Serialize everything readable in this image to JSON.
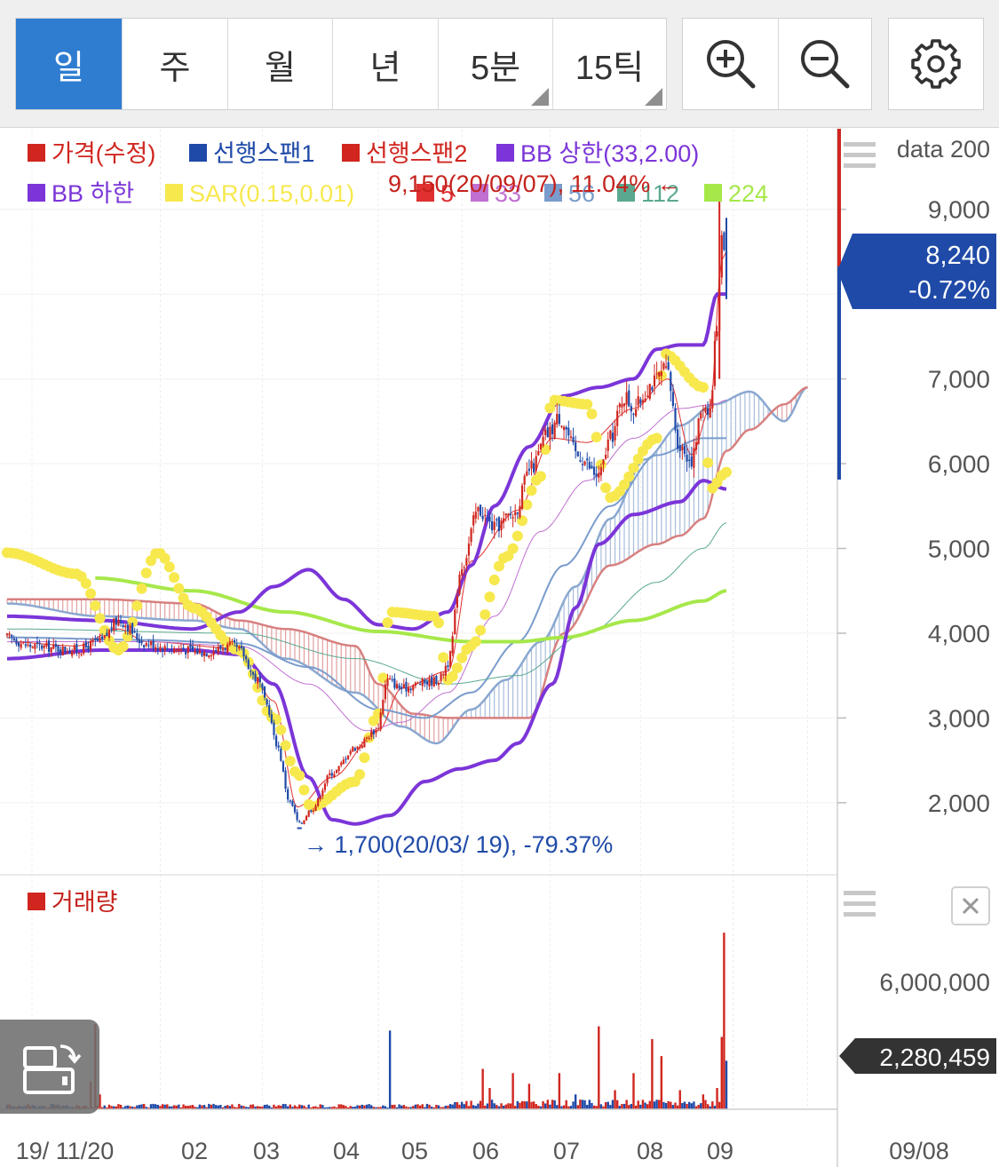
{
  "toolbar": {
    "periods": [
      {
        "label": "일",
        "active": true,
        "menu": false
      },
      {
        "label": "주",
        "active": false,
        "menu": false
      },
      {
        "label": "월",
        "active": false,
        "menu": false
      },
      {
        "label": "년",
        "active": false,
        "menu": false
      },
      {
        "label": "5분",
        "active": false,
        "menu": true
      },
      {
        "label": "15틱",
        "active": false,
        "menu": true
      }
    ],
    "icons": [
      "zoom-in-icon",
      "zoom-out-icon",
      "gear-icon"
    ]
  },
  "colors": {
    "price_up": "#d0261f",
    "price_down": "#1f4aa8",
    "span1": "#1f4aa8",
    "span2": "#d0261f",
    "bollinger": "#7b35d8",
    "sar": "#f7e84e",
    "ma5": "#e03030",
    "ma33": "#c070d0",
    "ma56": "#7a9ccc",
    "ma112": "#5aa890",
    "ma224": "#a6e84a",
    "cloud_pos": "#d88080",
    "cloud_neg": "#8aa8d0"
  },
  "legend": {
    "row1": [
      {
        "name": "가격(수정)",
        "color": "#d0261f"
      },
      {
        "name": "선행스팬1",
        "color": "#1f4aa8"
      },
      {
        "name": "선행스팬2",
        "color": "#d0261f"
      },
      {
        "name": "BB 상한(33,2.00)",
        "color": "#7b35d8"
      }
    ],
    "row2": [
      {
        "name": "BB 하한",
        "color": "#7b35d8"
      },
      {
        "name": "SAR(0.15,0.01)",
        "color": "#f7e84e"
      },
      {
        "name": "5",
        "color": "#e03030"
      },
      {
        "name": "33",
        "color": "#c070d0"
      },
      {
        "name": "56",
        "color": "#7a9ccc"
      },
      {
        "name": "112",
        "color": "#5aa890"
      },
      {
        "name": "224",
        "color": "#a6e84a"
      }
    ]
  },
  "price_panel": {
    "axis_title": "data 200",
    "current_price": "8,240",
    "change_pct": "-0.72%",
    "high_annotation": "9,150(20/09/07), 11.04% ←",
    "low_annotation": "→ 1,700(20/03/ 19), -79.37%"
  },
  "volume_panel": {
    "legend": "거래량",
    "current_volume": "2,280,459"
  },
  "x_axis": {
    "labels": [
      "19/ 11/20",
      "02",
      "03",
      "04",
      "05",
      "06",
      "07",
      "08",
      "09"
    ],
    "right_date": "09/08"
  },
  "chart_data": [
    {
      "type": "candlestick",
      "title": "",
      "x_ticks": [
        "19/ 11/20",
        "02",
        "03",
        "04",
        "05",
        "06",
        "07",
        "08",
        "09"
      ],
      "ylim": [
        1150,
        9950
      ],
      "y_ticks": [
        2000,
        3000,
        4000,
        5000,
        6000,
        7000,
        8000,
        9000
      ],
      "y_tick_labels": [
        "2,000",
        "3,000",
        "4,000",
        "5,000",
        "6,000",
        "7,000",
        "8,000",
        "9,000"
      ],
      "current_price": 8240,
      "high": {
        "value": 9150,
        "date": "20/09/07",
        "pct": 11.04
      },
      "low": {
        "value": 1700,
        "date": "20/03/19",
        "pct": -79.37
      },
      "close_keypoints": [
        [
          0,
          3950
        ],
        [
          10,
          3850
        ],
        [
          30,
          3800
        ],
        [
          40,
          3900
        ],
        [
          48,
          4150
        ],
        [
          60,
          3880
        ],
        [
          70,
          3820
        ],
        [
          85,
          3780
        ],
        [
          97,
          3850
        ],
        [
          100,
          3800
        ],
        [
          108,
          3450
        ],
        [
          112,
          3150
        ],
        [
          116,
          2700
        ],
        [
          122,
          2000
        ],
        [
          126,
          1750
        ],
        [
          131,
          1920
        ],
        [
          140,
          2350
        ],
        [
          150,
          2650
        ],
        [
          159,
          2850
        ],
        [
          164,
          3450
        ],
        [
          170,
          3350
        ],
        [
          180,
          3420
        ],
        [
          186,
          3450
        ],
        [
          190,
          3650
        ],
        [
          196,
          4800
        ],
        [
          203,
          5450
        ],
        [
          210,
          5250
        ],
        [
          218,
          5400
        ],
        [
          226,
          5950
        ],
        [
          233,
          6350
        ],
        [
          238,
          6550
        ],
        [
          246,
          6100
        ],
        [
          255,
          5850
        ],
        [
          260,
          6300
        ],
        [
          266,
          6800
        ],
        [
          270,
          6650
        ],
        [
          278,
          6950
        ],
        [
          284,
          7100
        ],
        [
          290,
          6200
        ],
        [
          295,
          6050
        ],
        [
          300,
          6700
        ],
        [
          303,
          6650
        ],
        [
          306,
          7650
        ],
        [
          308,
          8800
        ],
        [
          310,
          8240
        ]
      ],
      "series": [
        {
          "name": "선행스팬1",
          "keypoints": [
            [
              0,
              4350
            ],
            [
              40,
              4200
            ],
            [
              80,
              4150
            ],
            [
              100,
              4050
            ],
            [
              120,
              3700
            ],
            [
              150,
              3300
            ],
            [
              170,
              2900
            ],
            [
              185,
              2700
            ],
            [
              200,
              3100
            ],
            [
              215,
              3450
            ],
            [
              230,
              3900
            ],
            [
              245,
              4550
            ],
            [
              260,
              5350
            ],
            [
              275,
              6050
            ],
            [
              290,
              6450
            ],
            [
              305,
              6700
            ],
            [
              320,
              6850
            ],
            [
              335,
              6500
            ],
            [
              345,
              6900
            ]
          ]
        },
        {
          "name": "선행스팬2",
          "keypoints": [
            [
              0,
              4400
            ],
            [
              40,
              4400
            ],
            [
              80,
              4350
            ],
            [
              100,
              4150
            ],
            [
              120,
              4050
            ],
            [
              150,
              3850
            ],
            [
              160,
              3400
            ],
            [
              175,
              3050
            ],
            [
              190,
              3000
            ],
            [
              210,
              3000
            ],
            [
              225,
              3000
            ],
            [
              240,
              4000
            ],
            [
              260,
              4800
            ],
            [
              280,
              5050
            ],
            [
              290,
              5150
            ],
            [
              300,
              5350
            ],
            [
              310,
              6150
            ],
            [
              320,
              6400
            ],
            [
              335,
              6700
            ],
            [
              345,
              6900
            ]
          ]
        },
        {
          "name": "BB 상한(33,2.00)",
          "keypoints": [
            [
              0,
              4200
            ],
            [
              40,
              4150
            ],
            [
              80,
              4050
            ],
            [
              100,
              4250
            ],
            [
              115,
              4550
            ],
            [
              130,
              4750
            ],
            [
              145,
              4400
            ],
            [
              160,
              4100
            ],
            [
              175,
              4050
            ],
            [
              190,
              4250
            ],
            [
              200,
              4800
            ],
            [
              210,
              5500
            ],
            [
              225,
              6200
            ],
            [
              240,
              6800
            ],
            [
              255,
              6900
            ],
            [
              270,
              7000
            ],
            [
              280,
              7350
            ],
            [
              290,
              7400
            ],
            [
              300,
              7400
            ],
            [
              306,
              8000
            ],
            [
              310,
              8000
            ]
          ]
        },
        {
          "name": "BB 하한",
          "keypoints": [
            [
              0,
              3700
            ],
            [
              40,
              3800
            ],
            [
              80,
              3800
            ],
            [
              100,
              3750
            ],
            [
              115,
              3400
            ],
            [
              130,
              2300
            ],
            [
              140,
              1800
            ],
            [
              150,
              1750
            ],
            [
              165,
              1850
            ],
            [
              180,
              2250
            ],
            [
              195,
              2400
            ],
            [
              210,
              2500
            ],
            [
              220,
              2700
            ],
            [
              235,
              3400
            ],
            [
              245,
              4300
            ],
            [
              255,
              5050
            ],
            [
              270,
              5400
            ],
            [
              290,
              5550
            ],
            [
              300,
              5800
            ],
            [
              310,
              5700
            ]
          ]
        },
        {
          "name": "SAR(0.15,0.01)",
          "keypoints": [
            [
              0,
              4950
            ],
            [
              30,
              4700
            ],
            [
              48,
              3800
            ],
            [
              65,
              4950
            ],
            [
              80,
              4300
            ],
            [
              100,
              3800
            ],
            [
              115,
              3000
            ],
            [
              125,
              2350
            ],
            [
              131,
              1950
            ],
            [
              150,
              2250
            ],
            [
              160,
              3050
            ],
            [
              165,
              4250
            ],
            [
              185,
              4200
            ],
            [
              190,
              3450
            ],
            [
              200,
              3850
            ],
            [
              215,
              4900
            ],
            [
              230,
              5850
            ],
            [
              235,
              6750
            ],
            [
              250,
              6700
            ],
            [
              260,
              5600
            ],
            [
              280,
              6300
            ],
            [
              283,
              7300
            ],
            [
              300,
              6900
            ],
            [
              303,
              5700
            ],
            [
              310,
              5900
            ]
          ]
        },
        {
          "name": "5",
          "keypoints": [
            [
              0,
              3900
            ],
            [
              30,
              3850
            ],
            [
              48,
              4050
            ],
            [
              60,
              3900
            ],
            [
              100,
              3820
            ],
            [
              115,
              3200
            ],
            [
              125,
              1950
            ],
            [
              140,
              2300
            ],
            [
              160,
              2850
            ],
            [
              170,
              3350
            ],
            [
              190,
              3550
            ],
            [
              200,
              4850
            ],
            [
              220,
              5450
            ],
            [
              235,
              6300
            ],
            [
              250,
              6250
            ],
            [
              270,
              6650
            ],
            [
              285,
              7000
            ],
            [
              295,
              6100
            ],
            [
              303,
              6650
            ],
            [
              308,
              8400
            ],
            [
              310,
              8500
            ]
          ]
        },
        {
          "name": "33",
          "keypoints": [
            [
              0,
              3900
            ],
            [
              60,
              3900
            ],
            [
              100,
              3850
            ],
            [
              130,
              3400
            ],
            [
              155,
              2850
            ],
            [
              170,
              2950
            ],
            [
              190,
              3300
            ],
            [
              210,
              4200
            ],
            [
              230,
              5200
            ],
            [
              250,
              5800
            ],
            [
              270,
              6300
            ],
            [
              290,
              6650
            ],
            [
              305,
              6700
            ],
            [
              310,
              6750
            ]
          ]
        },
        {
          "name": "56",
          "keypoints": [
            [
              0,
              3950
            ],
            [
              60,
              3920
            ],
            [
              100,
              3880
            ],
            [
              130,
              3600
            ],
            [
              160,
              3100
            ],
            [
              180,
              3000
            ],
            [
              200,
              3300
            ],
            [
              220,
              3900
            ],
            [
              240,
              4800
            ],
            [
              260,
              5500
            ],
            [
              280,
              6100
            ],
            [
              300,
              6300
            ],
            [
              310,
              6300
            ]
          ]
        },
        {
          "name": "112",
          "keypoints": [
            [
              0,
              4050
            ],
            [
              100,
              4000
            ],
            [
              150,
              3700
            ],
            [
              190,
              3400
            ],
            [
              220,
              3500
            ],
            [
              250,
              4000
            ],
            [
              280,
              4600
            ],
            [
              300,
              5000
            ],
            [
              310,
              5300
            ]
          ]
        },
        {
          "name": "224",
          "keypoints": [
            [
              38,
              4650
            ],
            [
              80,
              4500
            ],
            [
              120,
              4250
            ],
            [
              160,
              4020
            ],
            [
              200,
              3900
            ],
            [
              220,
              3900
            ],
            [
              240,
              3950
            ],
            [
              270,
              4150
            ],
            [
              300,
              4380
            ],
            [
              310,
              4500
            ]
          ]
        }
      ]
    },
    {
      "type": "bar",
      "title": "거래량",
      "ylim": [
        0,
        9350000
      ],
      "y_ticks": [
        6000000
      ],
      "y_tick_labels": [
        "6,000,000"
      ],
      "current_volume": 2280459,
      "baseline": 150000,
      "spikes": [
        [
          36,
          1300000,
          "up"
        ],
        [
          38,
          4000000,
          "up"
        ],
        [
          40,
          700000,
          "up"
        ],
        [
          165,
          3700000,
          "down"
        ],
        [
          205,
          1900000,
          "up"
        ],
        [
          208,
          1000000,
          "up"
        ],
        [
          218,
          1700000,
          "up"
        ],
        [
          225,
          1200000,
          "up"
        ],
        [
          238,
          1700000,
          "up"
        ],
        [
          245,
          700000,
          "down"
        ],
        [
          255,
          3900000,
          "up"
        ],
        [
          262,
          900000,
          "up"
        ],
        [
          270,
          1700000,
          "up"
        ],
        [
          278,
          3300000,
          "up"
        ],
        [
          282,
          2500000,
          "up"
        ],
        [
          290,
          900000,
          "up"
        ],
        [
          300,
          700000,
          "up"
        ],
        [
          306,
          1000000,
          "up"
        ],
        [
          308,
          3400000,
          "up"
        ],
        [
          309,
          8300000,
          "up"
        ],
        [
          310,
          2280459,
          "down"
        ]
      ]
    }
  ]
}
